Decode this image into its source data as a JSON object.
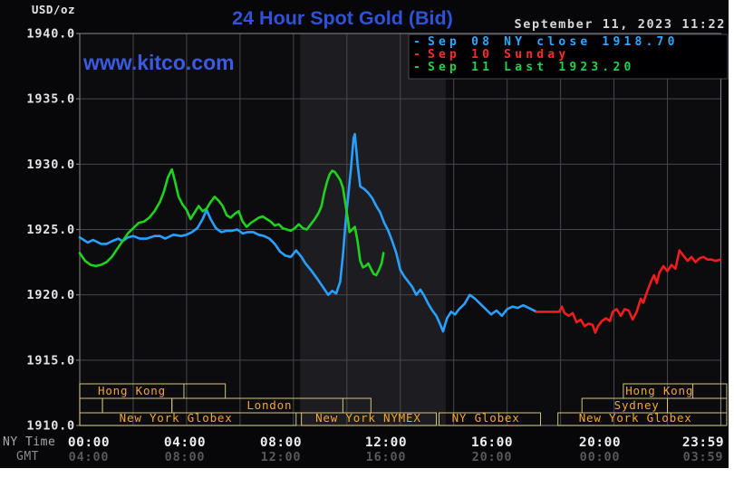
{
  "header": {
    "title": "24 Hour Spot Gold (Bid)",
    "watermark": "www.kitco.com",
    "datetime": "September 11, 2023 11:22"
  },
  "legend": {
    "items": [
      {
        "dash": "-",
        "label": "Sep 08 NY close 1918.70",
        "color": "#2aa9ff"
      },
      {
        "dash": "-",
        "label": "Sep 10 Sunday",
        "color": "#ff2a2a"
      },
      {
        "dash": "-",
        "label": "Sep 11 Last 1923.20",
        "color": "#1ed348"
      }
    ]
  },
  "y_axis": {
    "unit": "USD/oz",
    "ticks": [
      "1940.0",
      "1935.0",
      "1930.0",
      "1925.0",
      "1920.0",
      "1915.0",
      "1910.0"
    ]
  },
  "x_axis": {
    "row1_caption": "NY Time",
    "row2_caption": "GMT",
    "ticks": [
      {
        "ny": "00:00",
        "gmt": "04:00",
        "h": 0
      },
      {
        "ny": "04:00",
        "gmt": "08:00",
        "h": 4
      },
      {
        "ny": "08:00",
        "gmt": "12:00",
        "h": 8
      },
      {
        "ny": "12:00",
        "gmt": "16:00",
        "h": 12
      },
      {
        "ny": "16:00",
        "gmt": "20:00",
        "h": 16
      },
      {
        "ny": "20:00",
        "gmt": "00:00",
        "h": 20
      },
      {
        "ny": "23:59",
        "gmt": "03:59",
        "h": 24
      }
    ]
  },
  "sessions": {
    "border_color": "#d2c47c",
    "label_color": "#f4a52e",
    "rows": [
      {
        "boxes": [
          {
            "label": "Hong Kong",
            "start_h": 0,
            "end_h": 5.45,
            "dividers": [
              3.9
            ],
            "label_center_h": 1.95
          },
          {
            "label": "Hong Kong",
            "start_h": 20.35,
            "end_h": 24.28,
            "dividers": [
              22.95
            ],
            "label_center_h": 21.7
          }
        ]
      },
      {
        "boxes": [
          {
            "label": "",
            "start_h": 0,
            "end_h": 0.85,
            "dividers": [],
            "label_center_h": 0
          },
          {
            "label": "",
            "start_h": 0.85,
            "end_h": 3.45,
            "dividers": [],
            "label_center_h": 0
          },
          {
            "label": "London",
            "start_h": 3.45,
            "end_h": 10.9,
            "dividers": [
              9.85
            ],
            "label_center_h": 7.1
          },
          {
            "label": "Sydney",
            "start_h": 18.8,
            "end_h": 22.0,
            "dividers": [],
            "label_center_h": 20.85
          },
          {
            "label": "",
            "start_h": 22.0,
            "end_h": 24.28,
            "dividers": [],
            "label_center_h": 0
          }
        ]
      },
      {
        "boxes": [
          {
            "label": "New York Globex",
            "start_h": 0,
            "end_h": 8.1,
            "dividers": [],
            "label_center_h": 3.6
          },
          {
            "label": "New York NYMEX",
            "start_h": 8.3,
            "end_h": 13.35,
            "dividers": [],
            "label_center_h": 10.8
          },
          {
            "label": "NY Globex",
            "start_h": 13.45,
            "end_h": 17.25,
            "dividers": [],
            "label_center_h": 15.2
          },
          {
            "label": "New York Globex",
            "start_h": 17.9,
            "end_h": 24.28,
            "dividers": [],
            "label_center_h": 20.8
          }
        ]
      }
    ]
  },
  "chart_data": {
    "type": "line",
    "title": "24 Hour Spot Gold (Bid)",
    "xlabel": "NY Time (hours 00:00-23:59)",
    "ylabel": "USD/oz",
    "ylim": [
      1910.0,
      1940.0
    ],
    "xlim_hours": [
      0,
      24
    ],
    "grid": {
      "x_step_hours": 2,
      "y_step_usd": 5
    },
    "nymex_shade_band_hours": {
      "start_h": 8.25,
      "end_h": 13.7
    },
    "annotations": {
      "sep08_ny_close": 1918.7,
      "sep11_last": 1923.2
    },
    "series": [
      {
        "name": "Sep 08 NY close",
        "color": "#28a0ff",
        "points": [
          [
            0,
            1924.4
          ],
          [
            0.3,
            1924.0
          ],
          [
            0.5,
            1924.2
          ],
          [
            0.8,
            1923.9
          ],
          [
            1.0,
            1923.9
          ],
          [
            1.2,
            1924.1
          ],
          [
            1.45,
            1924.3
          ],
          [
            1.6,
            1924.1
          ],
          [
            1.8,
            1924.4
          ],
          [
            2.0,
            1924.5
          ],
          [
            2.25,
            1924.3
          ],
          [
            2.5,
            1924.3
          ],
          [
            2.8,
            1924.5
          ],
          [
            3.0,
            1924.5
          ],
          [
            3.2,
            1924.3
          ],
          [
            3.5,
            1924.6
          ],
          [
            3.8,
            1924.5
          ],
          [
            4.0,
            1924.6
          ],
          [
            4.2,
            1924.8
          ],
          [
            4.4,
            1925.1
          ],
          [
            4.6,
            1925.8
          ],
          [
            4.75,
            1926.5
          ],
          [
            4.9,
            1925.8
          ],
          [
            5.1,
            1925.1
          ],
          [
            5.3,
            1924.8
          ],
          [
            5.5,
            1924.9
          ],
          [
            5.7,
            1924.9
          ],
          [
            5.9,
            1925.0
          ],
          [
            6.1,
            1924.7
          ],
          [
            6.3,
            1924.8
          ],
          [
            6.5,
            1924.8
          ],
          [
            6.7,
            1924.6
          ],
          [
            6.9,
            1924.5
          ],
          [
            7.1,
            1924.3
          ],
          [
            7.3,
            1923.9
          ],
          [
            7.5,
            1923.3
          ],
          [
            7.7,
            1923.0
          ],
          [
            7.9,
            1922.9
          ],
          [
            8.1,
            1923.4
          ],
          [
            8.3,
            1922.9
          ],
          [
            8.45,
            1922.4
          ],
          [
            8.65,
            1921.9
          ],
          [
            8.9,
            1921.2
          ],
          [
            9.1,
            1920.6
          ],
          [
            9.3,
            1920.0
          ],
          [
            9.45,
            1920.3
          ],
          [
            9.6,
            1920.1
          ],
          [
            9.75,
            1921.0
          ],
          [
            9.85,
            1923.0
          ],
          [
            9.95,
            1925.5
          ],
          [
            10.05,
            1927.6
          ],
          [
            10.15,
            1929.6
          ],
          [
            10.25,
            1932.0
          ],
          [
            10.3,
            1932.3
          ],
          [
            10.4,
            1930.0
          ],
          [
            10.5,
            1928.3
          ],
          [
            10.65,
            1928.1
          ],
          [
            10.8,
            1927.8
          ],
          [
            10.95,
            1927.4
          ],
          [
            11.1,
            1926.8
          ],
          [
            11.25,
            1926.3
          ],
          [
            11.4,
            1925.5
          ],
          [
            11.55,
            1924.9
          ],
          [
            11.7,
            1924.1
          ],
          [
            11.85,
            1923.2
          ],
          [
            12.0,
            1921.9
          ],
          [
            12.15,
            1921.4
          ],
          [
            12.3,
            1921.0
          ],
          [
            12.45,
            1920.6
          ],
          [
            12.6,
            1920.0
          ],
          [
            12.75,
            1920.4
          ],
          [
            12.9,
            1919.9
          ],
          [
            13.05,
            1919.3
          ],
          [
            13.2,
            1918.8
          ],
          [
            13.35,
            1918.4
          ],
          [
            13.5,
            1917.7
          ],
          [
            13.6,
            1917.2
          ],
          [
            13.75,
            1918.2
          ],
          [
            13.9,
            1918.7
          ],
          [
            14.05,
            1918.5
          ],
          [
            14.2,
            1918.9
          ],
          [
            14.4,
            1919.3
          ],
          [
            14.6,
            1920.0
          ],
          [
            14.8,
            1919.7
          ],
          [
            15.0,
            1919.3
          ],
          [
            15.2,
            1918.9
          ],
          [
            15.4,
            1918.5
          ],
          [
            15.6,
            1918.8
          ],
          [
            15.8,
            1918.4
          ],
          [
            16.0,
            1918.9
          ],
          [
            16.2,
            1919.1
          ],
          [
            16.4,
            1919.0
          ],
          [
            16.6,
            1919.2
          ],
          [
            16.8,
            1919.0
          ],
          [
            17.1,
            1918.7
          ]
        ]
      },
      {
        "name": "Sep 10 Sunday",
        "color": "#f01d1d",
        "points": [
          [
            17.1,
            1918.7
          ],
          [
            17.95,
            1918.7
          ],
          [
            18.05,
            1919.1
          ],
          [
            18.15,
            1918.6
          ],
          [
            18.3,
            1918.4
          ],
          [
            18.45,
            1918.6
          ],
          [
            18.6,
            1917.9
          ],
          [
            18.75,
            1918.1
          ],
          [
            18.9,
            1917.6
          ],
          [
            19.05,
            1917.8
          ],
          [
            19.2,
            1917.7
          ],
          [
            19.3,
            1917.1
          ],
          [
            19.4,
            1917.6
          ],
          [
            19.55,
            1918.0
          ],
          [
            19.7,
            1918.2
          ],
          [
            19.85,
            1918.0
          ],
          [
            19.95,
            1918.7
          ],
          [
            20.1,
            1918.9
          ],
          [
            20.25,
            1918.4
          ],
          [
            20.4,
            1918.9
          ],
          [
            20.55,
            1918.8
          ],
          [
            20.7,
            1918.1
          ],
          [
            20.85,
            1918.7
          ],
          [
            21.0,
            1919.7
          ],
          [
            21.1,
            1919.4
          ],
          [
            21.25,
            1920.3
          ],
          [
            21.4,
            1921.1
          ],
          [
            21.5,
            1921.5
          ],
          [
            21.6,
            1920.9
          ],
          [
            21.7,
            1921.7
          ],
          [
            21.85,
            1922.2
          ],
          [
            22.0,
            1921.8
          ],
          [
            22.15,
            1922.3
          ],
          [
            22.3,
            1922.0
          ],
          [
            22.45,
            1923.4
          ],
          [
            22.6,
            1923.0
          ],
          [
            22.75,
            1922.6
          ],
          [
            22.9,
            1922.9
          ],
          [
            23.05,
            1922.5
          ],
          [
            23.2,
            1922.8
          ],
          [
            23.35,
            1922.9
          ],
          [
            23.5,
            1922.7
          ],
          [
            23.65,
            1922.7
          ],
          [
            23.8,
            1922.6
          ],
          [
            23.98,
            1922.7
          ]
        ]
      },
      {
        "name": "Sep 11 Last",
        "color": "#1ed31e",
        "points": [
          [
            0,
            1923.2
          ],
          [
            0.2,
            1922.6
          ],
          [
            0.4,
            1922.3
          ],
          [
            0.6,
            1922.2
          ],
          [
            0.8,
            1922.3
          ],
          [
            1.0,
            1922.5
          ],
          [
            1.2,
            1922.9
          ],
          [
            1.5,
            1923.8
          ],
          [
            1.8,
            1924.7
          ],
          [
            2.0,
            1925.1
          ],
          [
            2.2,
            1925.5
          ],
          [
            2.4,
            1925.6
          ],
          [
            2.6,
            1925.9
          ],
          [
            2.8,
            1926.4
          ],
          [
            3.0,
            1927.1
          ],
          [
            3.15,
            1927.9
          ],
          [
            3.3,
            1929.0
          ],
          [
            3.45,
            1929.6
          ],
          [
            3.55,
            1928.8
          ],
          [
            3.7,
            1927.5
          ],
          [
            3.85,
            1926.9
          ],
          [
            4.0,
            1926.5
          ],
          [
            4.15,
            1925.8
          ],
          [
            4.3,
            1926.3
          ],
          [
            4.45,
            1926.8
          ],
          [
            4.6,
            1926.4
          ],
          [
            4.75,
            1926.6
          ],
          [
            4.9,
            1927.1
          ],
          [
            5.05,
            1927.5
          ],
          [
            5.2,
            1927.2
          ],
          [
            5.35,
            1926.8
          ],
          [
            5.5,
            1926.1
          ],
          [
            5.65,
            1925.9
          ],
          [
            5.8,
            1926.2
          ],
          [
            5.95,
            1926.4
          ],
          [
            6.1,
            1925.6
          ],
          [
            6.25,
            1925.2
          ],
          [
            6.4,
            1925.5
          ],
          [
            6.55,
            1925.7
          ],
          [
            6.7,
            1925.9
          ],
          [
            6.85,
            1926.0
          ],
          [
            7.0,
            1925.8
          ],
          [
            7.15,
            1925.6
          ],
          [
            7.3,
            1925.3
          ],
          [
            7.45,
            1925.4
          ],
          [
            7.6,
            1925.1
          ],
          [
            7.75,
            1925.0
          ],
          [
            7.9,
            1924.9
          ],
          [
            8.05,
            1925.1
          ],
          [
            8.2,
            1925.4
          ],
          [
            8.35,
            1925.1
          ],
          [
            8.5,
            1925.0
          ],
          [
            8.65,
            1925.4
          ],
          [
            8.8,
            1925.8
          ],
          [
            8.95,
            1926.3
          ],
          [
            9.05,
            1926.8
          ],
          [
            9.15,
            1927.8
          ],
          [
            9.25,
            1928.6
          ],
          [
            9.35,
            1929.2
          ],
          [
            9.45,
            1929.5
          ],
          [
            9.55,
            1929.4
          ],
          [
            9.65,
            1929.1
          ],
          [
            9.75,
            1928.8
          ],
          [
            9.85,
            1928.2
          ],
          [
            9.95,
            1926.9
          ],
          [
            10.05,
            1925.6
          ],
          [
            10.1,
            1924.8
          ],
          [
            10.2,
            1925.0
          ],
          [
            10.3,
            1925.2
          ],
          [
            10.4,
            1924.1
          ],
          [
            10.5,
            1922.6
          ],
          [
            10.6,
            1922.1
          ],
          [
            10.7,
            1922.2
          ],
          [
            10.8,
            1922.4
          ],
          [
            10.9,
            1922.0
          ],
          [
            11.0,
            1921.6
          ],
          [
            11.1,
            1921.5
          ],
          [
            11.2,
            1921.9
          ],
          [
            11.3,
            1922.4
          ],
          [
            11.37,
            1923.2
          ]
        ]
      }
    ]
  },
  "colors": {
    "frame_bg": "#07070a",
    "plot_bg": "#0c0c0f",
    "shade_band": "#1d1d21",
    "gridline": "#46464e",
    "plot_border": "#74747c",
    "title_blue": "#2f52d8",
    "watermark_blue": "#3c5ae0",
    "date_text": "#d6d6d6",
    "y_label": "#e4e4e4",
    "ny_tick": "#ededed",
    "gmt_tick": "#57575c",
    "axis_caption": "#a8a8a8"
  }
}
